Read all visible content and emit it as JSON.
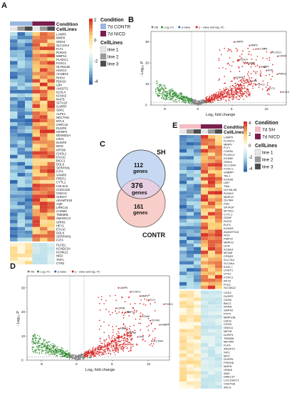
{
  "panels": {
    "a": "A",
    "b": "B",
    "c": "C",
    "d": "D",
    "e": "E"
  },
  "heatmap_a": {
    "legend_condition_title": "Condition",
    "legend_condition": [
      {
        "label": "7d CONTR",
        "color": "#9bb7e0"
      },
      {
        "label": "7d NICD",
        "color": "#7a1f4e"
      }
    ],
    "legend_celllines_title": "CellLines",
    "legend_celllines": [
      {
        "label": "line 1",
        "color": "#e6e6e6"
      },
      {
        "label": "line 2",
        "color": "#9a9a9a"
      },
      {
        "label": "line 3",
        "color": "#4d4d4d"
      }
    ],
    "row_header_condition": "Condition",
    "row_header_celllines": "CellLines",
    "colorbar_ticks": [
      "2",
      "0",
      "-2",
      "-4"
    ],
    "genes_top": [
      "LAMP5",
      "MMP9",
      "GRIK4",
      "SLC10A4",
      "FLT1",
      "RUNX3",
      "MMP13",
      "PLXDC1",
      "FOXC1",
      "OLFML2B",
      "HOXC4",
      "ACSBG1",
      "RHOV",
      "RDH10",
      "LBH",
      "ANGPT2",
      "KLHL4",
      "KCNA5",
      "MAFB",
      "SFTA1P",
      "GABRP",
      "SDK1",
      "ALPK1",
      "NECTIN4",
      "MYL5",
      "LRRC15",
      "DUSP6",
      "IGFBP3",
      "DENND2A",
      "LRG1",
      "DUSP8",
      "MOG",
      "KRT86",
      "CHI3L1",
      "EVA1C",
      "BICC1",
      "DOLK",
      "SERPINI1",
      "FAT4"
    ],
    "genes_mid": [
      "VAMP8",
      "PREF1",
      "CYTL1",
      "COL5A3",
      "CCDC102",
      "CNGA3",
      "SHISA7",
      "ADAMTS18",
      "AQP",
      "LRRC15",
      "CADM3",
      "TMEM91",
      "SMARCC2",
      "GRIK5",
      "HEY1",
      "EYA1C",
      "DOLK",
      "SERPINH1",
      "FAT4"
    ],
    "genes_bottom": [
      "PLCB1",
      "KCNDC3A",
      "KCNK12",
      "NID2",
      "TNF1",
      "CYR2",
      "ESG1",
      "TCF1",
      "EGFL2",
      "EGF3",
      "FGF13",
      "CAMK2A",
      "CDH11",
      "HECLG",
      "OLMF1B",
      "LOC100270245",
      "CALB1",
      "LINC00476",
      "SLM2",
      "CDH22",
      "LRCH4",
      "CASP14",
      "NRG1",
      "MIR9",
      "FMNT7",
      "TMEM169C",
      "NKX2-2",
      "FRMP2",
      "PAX3",
      "FAM83E",
      "PAM81D",
      "ELGR2",
      "SUP3",
      "TCAP",
      "TSPAN7"
    ]
  },
  "volcano_b": {
    "legend": [
      {
        "label": "NS",
        "color": "#7a7a7a"
      },
      {
        "label": "Log₂ FC",
        "color": "#2e8b2e"
      },
      {
        "label": "p-value",
        "color": "#2f5fb5"
      },
      {
        "label": "p - value and log₂ FC",
        "color": "#d42020"
      }
    ],
    "ylabel": "- Log₁₀ P",
    "xlabel": "Log₂ fold change",
    "xticks": [
      "-5",
      "0",
      "5",
      "10"
    ],
    "yticks": [
      "30",
      "20",
      "10",
      "0"
    ],
    "annotations": [
      "LAMP5",
      "MMP9",
      "SLC10A4",
      "PLXDC1",
      "CORIN",
      "HOXC4",
      "ACSBG1",
      "GABRP",
      "NOR",
      "PMP22",
      "KCNA5",
      "OLFM4",
      "FOXC1",
      "FLT1",
      "KLHL4"
    ]
  },
  "venn_c": {
    "set_top": "SH",
    "set_bottom": "CONTR",
    "only_top_count": "112",
    "only_top_unit": "genes",
    "overlap_count": "376",
    "overlap_unit": "genes",
    "only_bottom_count": "161",
    "only_bottom_unit": "genes"
  },
  "volcano_d": {
    "legend": [
      {
        "label": "NS",
        "color": "#7a7a7a"
      },
      {
        "label": "Log₂ FC",
        "color": "#2e8b2e"
      },
      {
        "label": "p-value",
        "color": "#2f5fb5"
      },
      {
        "label": "p - value and log₂ FC",
        "color": "#d42020"
      }
    ],
    "ylabel": "- Log₁₀ P",
    "xlabel": "Log₂ fold change",
    "xticks": [
      "-5",
      "0",
      "5",
      "10"
    ],
    "yticks": [
      "30",
      "20",
      "10",
      "0"
    ],
    "annotations": [
      "LAMP5",
      "PLXDC1",
      "MMP9",
      "FLT1",
      "FOXC1",
      "CORIN",
      "MMP13",
      "KCNA5",
      "OLFM4",
      "GABRP",
      "RUNX3",
      "KRT86",
      "TNN",
      "SLC10A4"
    ]
  },
  "heatmap_e": {
    "legend_condition_title": "Condition",
    "legend_condition": [
      {
        "label": "7d SH",
        "color": "#f5bcc4"
      },
      {
        "label": "7d NICD",
        "color": "#7a1f4e"
      }
    ],
    "legend_celllines_title": "CellLines",
    "legend_celllines": [
      {
        "label": "line 1",
        "color": "#e6e6e6"
      },
      {
        "label": "line 2",
        "color": "#9a9a9a"
      },
      {
        "label": "line 3",
        "color": "#4d4d4d"
      }
    ],
    "row_header_condition": "Condition",
    "row_header_celllines": "CellLines",
    "colorbar_ticks": [
      "4",
      "2",
      "0",
      "-2",
      "-4"
    ],
    "genes_top": [
      "LAMP5",
      "PLXDC1",
      "MMP9",
      "FLT1",
      "CORIN",
      "PLXDC2",
      "KCNB2",
      "GRIK4",
      "SLC10A4",
      "FOXC1",
      "GABRP",
      "TAL1",
      "KCNA5",
      "LBH",
      "TNN",
      "OLFML2B",
      "RUNX3",
      "MMP13",
      "OLFM4",
      "PSD",
      "SFTA1P",
      "MYOD1",
      "CYTL1",
      "GDNF",
      "RHOV",
      "ELF3",
      "KCNN3",
      "ADAMTS18",
      "NOS",
      "PMP22",
      "MMP13",
      "LIFR",
      "KCNE4",
      "MCAM",
      "CPNE2",
      "SLC7A4",
      "SLC4A4",
      "EGFL7",
      "CHST1",
      "OTX1",
      "FOXC1",
      "RFX2",
      "PLD1",
      "SLC5A12"
    ],
    "genes_bottom": [
      "CDS2",
      "DUSP2",
      "CDH6",
      "BAC2",
      "RXRB",
      "GAP43",
      "PTP4",
      "MMP10B",
      "LMLN",
      "CDH3",
      "GNG11",
      "NETM",
      "DUSP4",
      "TRIM35",
      "METRN",
      "KLF6",
      "ANGPT2",
      "SIX2",
      "MKX",
      "DUSP6",
      "FRIKH6",
      "MAFB",
      "GRIK6",
      "ANG",
      "DMKL3Y",
      "LOC100271",
      "CNOT9A",
      "APLN"
    ]
  }
}
